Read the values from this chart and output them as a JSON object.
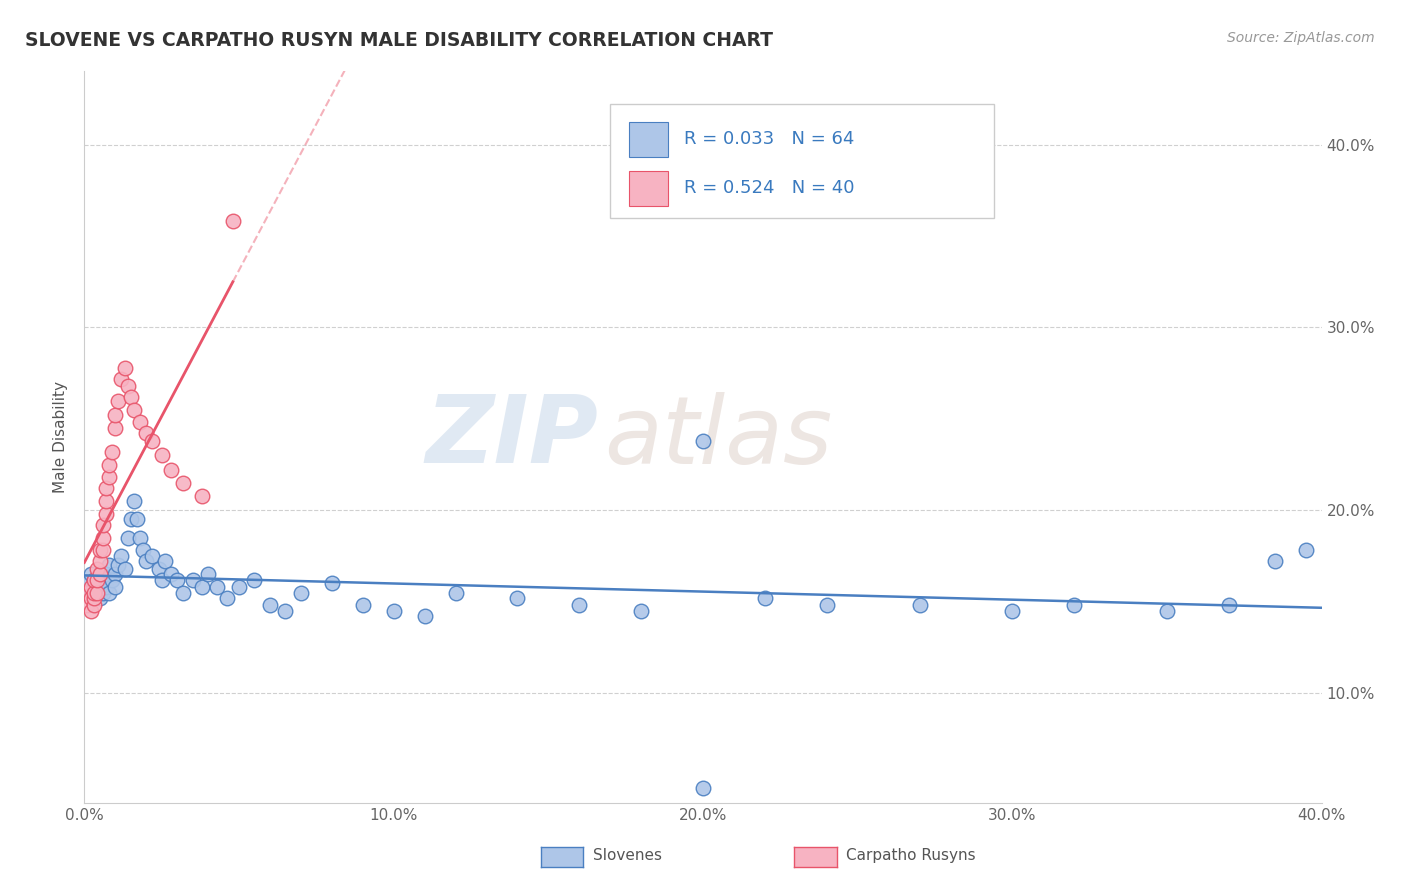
{
  "title": "SLOVENE VS CARPATHO RUSYN MALE DISABILITY CORRELATION CHART",
  "source": "Source: ZipAtlas.com",
  "ylabel": "Male Disability",
  "xlim": [
    0.0,
    0.4
  ],
  "ylim": [
    0.04,
    0.44
  ],
  "x_ticks": [
    0.0,
    0.1,
    0.2,
    0.3,
    0.4
  ],
  "x_tick_labels": [
    "0.0%",
    "10.0%",
    "20.0%",
    "30.0%",
    "40.0%"
  ],
  "y_ticks": [
    0.1,
    0.2,
    0.3,
    0.4
  ],
  "y_tick_labels": [
    "10.0%",
    "20.0%",
    "30.0%",
    "40.0%"
  ],
  "slovene_color": "#aec6e8",
  "carpatho_color": "#f7b3c2",
  "trend_slovene_color": "#4a7fc1",
  "trend_carpatho_color": "#e8546a",
  "R_slovene": 0.033,
  "N_slovene": 64,
  "R_carpatho": 0.524,
  "N_carpatho": 40,
  "slovene_x": [
    0.001,
    0.002,
    0.002,
    0.003,
    0.003,
    0.004,
    0.004,
    0.005,
    0.005,
    0.006,
    0.006,
    0.007,
    0.007,
    0.008,
    0.008,
    0.009,
    0.01,
    0.01,
    0.011,
    0.012,
    0.013,
    0.014,
    0.015,
    0.016,
    0.017,
    0.018,
    0.019,
    0.02,
    0.022,
    0.024,
    0.025,
    0.026,
    0.028,
    0.03,
    0.032,
    0.035,
    0.038,
    0.04,
    0.043,
    0.046,
    0.05,
    0.055,
    0.06,
    0.065,
    0.07,
    0.08,
    0.09,
    0.1,
    0.11,
    0.12,
    0.14,
    0.16,
    0.18,
    0.2,
    0.22,
    0.24,
    0.27,
    0.3,
    0.32,
    0.35,
    0.37,
    0.385,
    0.395,
    0.2
  ],
  "slovene_y": [
    0.16,
    0.165,
    0.155,
    0.158,
    0.162,
    0.155,
    0.16,
    0.158,
    0.152,
    0.155,
    0.162,
    0.158,
    0.165,
    0.155,
    0.17,
    0.162,
    0.165,
    0.158,
    0.17,
    0.175,
    0.168,
    0.185,
    0.195,
    0.205,
    0.195,
    0.185,
    0.178,
    0.172,
    0.175,
    0.168,
    0.162,
    0.172,
    0.165,
    0.162,
    0.155,
    0.162,
    0.158,
    0.165,
    0.158,
    0.152,
    0.158,
    0.162,
    0.148,
    0.145,
    0.155,
    0.16,
    0.148,
    0.145,
    0.142,
    0.155,
    0.152,
    0.148,
    0.145,
    0.238,
    0.152,
    0.148,
    0.148,
    0.145,
    0.148,
    0.145,
    0.148,
    0.172,
    0.178,
    0.048
  ],
  "carpatho_x": [
    0.001,
    0.001,
    0.002,
    0.002,
    0.002,
    0.003,
    0.003,
    0.003,
    0.003,
    0.004,
    0.004,
    0.004,
    0.005,
    0.005,
    0.005,
    0.006,
    0.006,
    0.006,
    0.007,
    0.007,
    0.007,
    0.008,
    0.008,
    0.009,
    0.01,
    0.01,
    0.011,
    0.012,
    0.013,
    0.014,
    0.015,
    0.016,
    0.018,
    0.02,
    0.022,
    0.025,
    0.028,
    0.032,
    0.038,
    0.048
  ],
  "carpatho_y": [
    0.148,
    0.155,
    0.152,
    0.145,
    0.158,
    0.148,
    0.152,
    0.155,
    0.162,
    0.155,
    0.162,
    0.168,
    0.165,
    0.172,
    0.178,
    0.178,
    0.185,
    0.192,
    0.198,
    0.205,
    0.212,
    0.218,
    0.225,
    0.232,
    0.245,
    0.252,
    0.26,
    0.272,
    0.278,
    0.268,
    0.262,
    0.255,
    0.248,
    0.242,
    0.238,
    0.23,
    0.222,
    0.215,
    0.208,
    0.358
  ],
  "watermark_zip": "ZIP",
  "watermark_atlas": "atlas",
  "background_color": "#ffffff",
  "grid_color": "#d0d0d0",
  "legend_border_color": "#cccccc"
}
